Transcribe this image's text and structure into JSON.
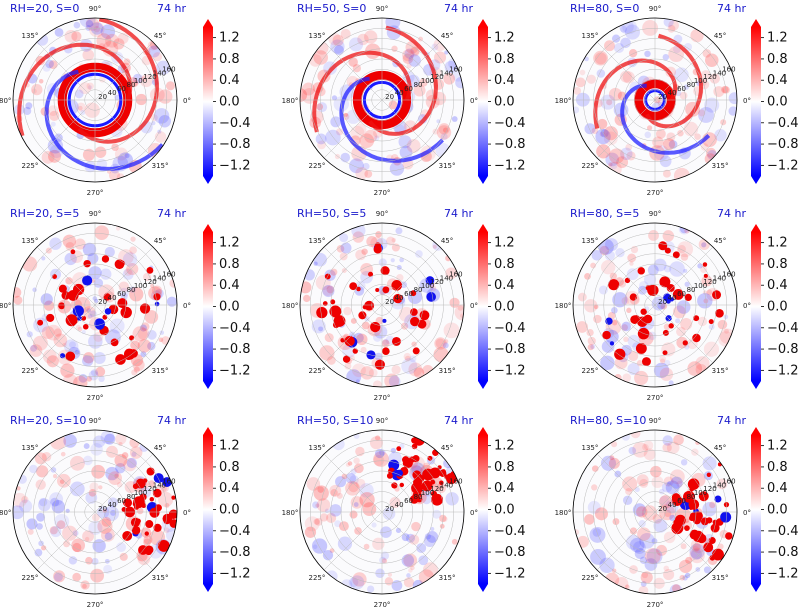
{
  "figure": {
    "colorbar_ticks": [
      "1.2",
      "0.8",
      "0.4",
      "0.0",
      "−0.4",
      "−0.8",
      "−1.2"
    ],
    "colormap": {
      "low": "#0000ff",
      "mid": "#ffffff",
      "high": "#ff0000"
    },
    "angle_labels": [
      "90°",
      "45°",
      "0°",
      "315°",
      "270°",
      "225°",
      "180°",
      "135°"
    ],
    "radial_labels": [
      "20",
      "40",
      "60",
      "80",
      "100",
      "120",
      "140",
      "160"
    ]
  },
  "chart_data": [
    {
      "type": "heatmap",
      "projection": "polar",
      "title": "RH=20, S=0",
      "time": "74 hr",
      "ring_center_ratio": 0.4,
      "feature": "spiral",
      "clim": [
        -1.4,
        1.4
      ]
    },
    {
      "type": "heatmap",
      "projection": "polar",
      "title": "RH=50, S=0",
      "time": "74 hr",
      "ring_center_ratio": 0.3,
      "feature": "ring",
      "clim": [
        -1.4,
        1.4
      ]
    },
    {
      "type": "heatmap",
      "projection": "polar",
      "title": "RH=80, S=0",
      "time": "74 hr",
      "ring_center_ratio": 0.2,
      "feature": "spiral",
      "clim": [
        -1.4,
        1.4
      ]
    },
    {
      "type": "heatmap",
      "projection": "polar",
      "title": "RH=20, S=5",
      "time": "74 hr",
      "ring_center_ratio": 0.35,
      "feature": "cells",
      "clim": [
        -1.4,
        1.4
      ]
    },
    {
      "type": "heatmap",
      "projection": "polar",
      "title": "RH=50, S=5",
      "time": "74 hr",
      "ring_center_ratio": 0.35,
      "feature": "cells",
      "clim": [
        -1.4,
        1.4
      ]
    },
    {
      "type": "heatmap",
      "projection": "polar",
      "title": "RH=80, S=5",
      "time": "74 hr",
      "ring_center_ratio": 0.3,
      "feature": "cells",
      "clim": [
        -1.4,
        1.4
      ]
    },
    {
      "type": "heatmap",
      "projection": "polar",
      "title": "RH=20, S=10",
      "time": "74 hr",
      "ring_center_ratio": 0.5,
      "feature": "east",
      "clim": [
        -1.4,
        1.4
      ]
    },
    {
      "type": "heatmap",
      "projection": "polar",
      "title": "RH=50, S=10",
      "time": "74 hr",
      "ring_center_ratio": 0.6,
      "feature": "northeast",
      "clim": [
        -1.4,
        1.4
      ]
    },
    {
      "type": "heatmap",
      "projection": "polar",
      "title": "RH=80, S=10",
      "time": "74 hr",
      "ring_center_ratio": 0.5,
      "feature": "east",
      "clim": [
        -1.4,
        1.4
      ]
    }
  ]
}
